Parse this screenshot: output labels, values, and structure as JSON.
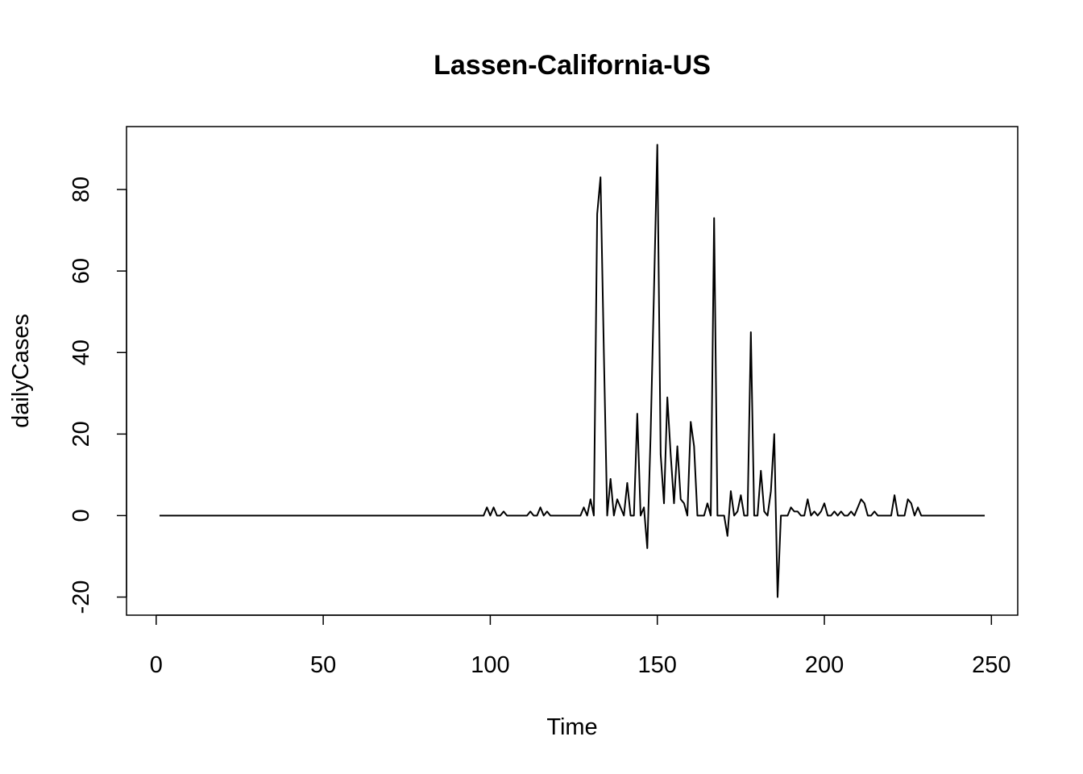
{
  "chart_data": {
    "type": "line",
    "title": "Lassen-California-US",
    "x_label": "Time",
    "y_label": "dailyCases",
    "color": "#000000",
    "x": [
      1,
      2,
      3,
      4,
      5,
      6,
      7,
      8,
      9,
      10,
      11,
      12,
      13,
      14,
      15,
      16,
      17,
      18,
      19,
      20,
      21,
      22,
      23,
      24,
      25,
      26,
      27,
      28,
      29,
      30,
      31,
      32,
      33,
      34,
      35,
      36,
      37,
      38,
      39,
      40,
      41,
      42,
      43,
      44,
      45,
      46,
      47,
      48,
      49,
      50,
      51,
      52,
      53,
      54,
      55,
      56,
      57,
      58,
      59,
      60,
      61,
      62,
      63,
      64,
      65,
      66,
      67,
      68,
      69,
      70,
      71,
      72,
      73,
      74,
      75,
      76,
      77,
      78,
      79,
      80,
      81,
      82,
      83,
      84,
      85,
      86,
      87,
      88,
      89,
      90,
      91,
      92,
      93,
      94,
      95,
      96,
      97,
      98,
      99,
      100,
      101,
      102,
      103,
      104,
      105,
      106,
      107,
      108,
      109,
      110,
      111,
      112,
      113,
      114,
      115,
      116,
      117,
      118,
      119,
      120,
      121,
      122,
      123,
      124,
      125,
      126,
      127,
      128,
      129,
      130,
      131,
      132,
      133,
      134,
      135,
      136,
      137,
      138,
      139,
      140,
      141,
      142,
      143,
      144,
      145,
      146,
      147,
      148,
      149,
      150,
      151,
      152,
      153,
      154,
      155,
      156,
      157,
      158,
      159,
      160,
      161,
      162,
      163,
      164,
      165,
      166,
      167,
      168,
      169,
      170,
      171,
      172,
      173,
      174,
      175,
      176,
      177,
      178,
      179,
      180,
      181,
      182,
      183,
      184,
      185,
      186,
      187,
      188,
      189,
      190,
      191,
      192,
      193,
      194,
      195,
      196,
      197,
      198,
      199,
      200,
      201,
      202,
      203,
      204,
      205,
      206,
      207,
      208,
      209,
      210,
      211,
      212,
      213,
      214,
      215,
      216,
      217,
      218,
      219,
      220,
      221,
      222,
      223,
      224,
      225,
      226,
      227,
      228,
      229,
      230,
      231,
      232,
      233,
      234,
      235,
      236,
      237,
      238,
      239,
      240,
      241,
      242,
      243,
      244,
      245,
      246,
      247,
      248
    ],
    "values": [
      0,
      0,
      0,
      0,
      0,
      0,
      0,
      0,
      0,
      0,
      0,
      0,
      0,
      0,
      0,
      0,
      0,
      0,
      0,
      0,
      0,
      0,
      0,
      0,
      0,
      0,
      0,
      0,
      0,
      0,
      0,
      0,
      0,
      0,
      0,
      0,
      0,
      0,
      0,
      0,
      0,
      0,
      0,
      0,
      0,
      0,
      0,
      0,
      0,
      0,
      0,
      0,
      0,
      0,
      0,
      0,
      0,
      0,
      0,
      0,
      0,
      0,
      0,
      0,
      0,
      0,
      0,
      0,
      0,
      0,
      0,
      0,
      0,
      0,
      0,
      0,
      0,
      0,
      0,
      0,
      0,
      0,
      0,
      0,
      0,
      0,
      0,
      0,
      0,
      0,
      0,
      0,
      0,
      0,
      0,
      0,
      0,
      0,
      2,
      0,
      2,
      0,
      0,
      1,
      0,
      0,
      0,
      0,
      0,
      0,
      0,
      1,
      0,
      0,
      2,
      0,
      1,
      0,
      0,
      0,
      0,
      0,
      0,
      0,
      0,
      0,
      0,
      2,
      0,
      4,
      0,
      74,
      83,
      40,
      0,
      9,
      0,
      4,
      2,
      0,
      8,
      0,
      0,
      25,
      0,
      2,
      -8,
      20,
      55,
      91,
      15,
      3,
      29,
      15,
      3,
      17,
      4,
      3,
      0,
      23,
      17,
      0,
      0,
      0,
      3,
      0,
      73,
      0,
      0,
      0,
      -5,
      6,
      0,
      1,
      5,
      0,
      0,
      45,
      0,
      0,
      11,
      1,
      0,
      6,
      20,
      -20,
      0,
      0,
      0,
      2,
      1,
      1,
      0,
      0,
      4,
      0,
      1,
      0,
      1,
      3,
      0,
      0,
      1,
      0,
      1,
      0,
      0,
      1,
      0,
      2,
      4,
      3,
      0,
      0,
      1,
      0,
      0,
      0,
      0,
      0,
      5,
      0,
      0,
      0,
      4,
      3,
      0,
      2,
      0,
      0,
      0,
      0,
      0,
      0,
      0,
      0,
      0,
      0,
      0,
      0,
      0,
      0,
      0,
      0,
      0,
      0,
      0,
      0
    ],
    "xlim": [
      -8.88,
      257.88
    ],
    "ylim": [
      -24.44,
      95.44
    ],
    "xticks": [
      0,
      50,
      100,
      150,
      200,
      250
    ],
    "yticks": [
      -20,
      0,
      20,
      40,
      60,
      80
    ]
  }
}
